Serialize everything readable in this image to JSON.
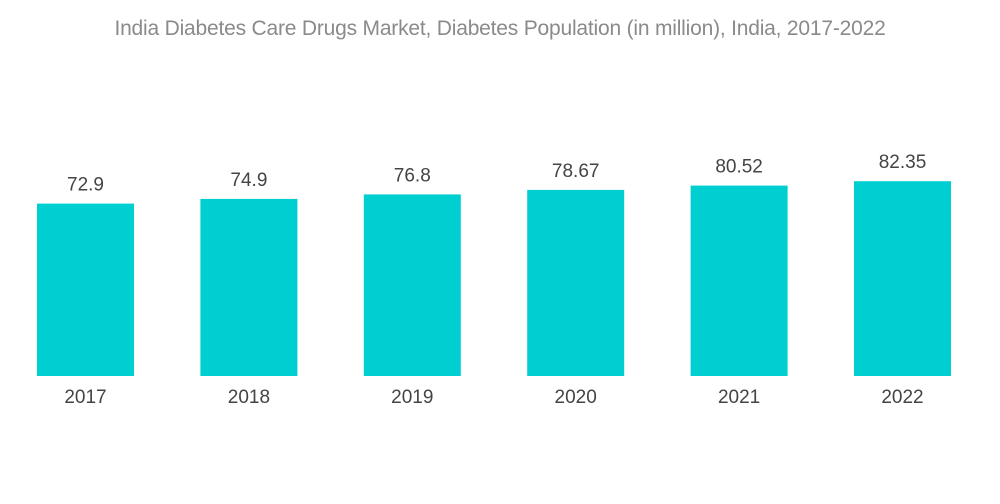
{
  "chart_data": {
    "type": "bar",
    "title": "India Diabetes Care Drugs Market, Diabetes Population (in million), India, 2017-2022",
    "xlabel": "",
    "ylabel": "",
    "categories": [
      "2017",
      "2018",
      "2019",
      "2020",
      "2021",
      "2022"
    ],
    "values": [
      72.9,
      74.9,
      76.8,
      78.67,
      80.52,
      82.35
    ],
    "value_labels": [
      "72.9",
      "74.9",
      "76.8",
      "78.67",
      "80.52",
      "82.35"
    ],
    "ylim": [
      0,
      84
    ],
    "grid": false,
    "legend": "none",
    "bar_color": "#00cfd1"
  }
}
